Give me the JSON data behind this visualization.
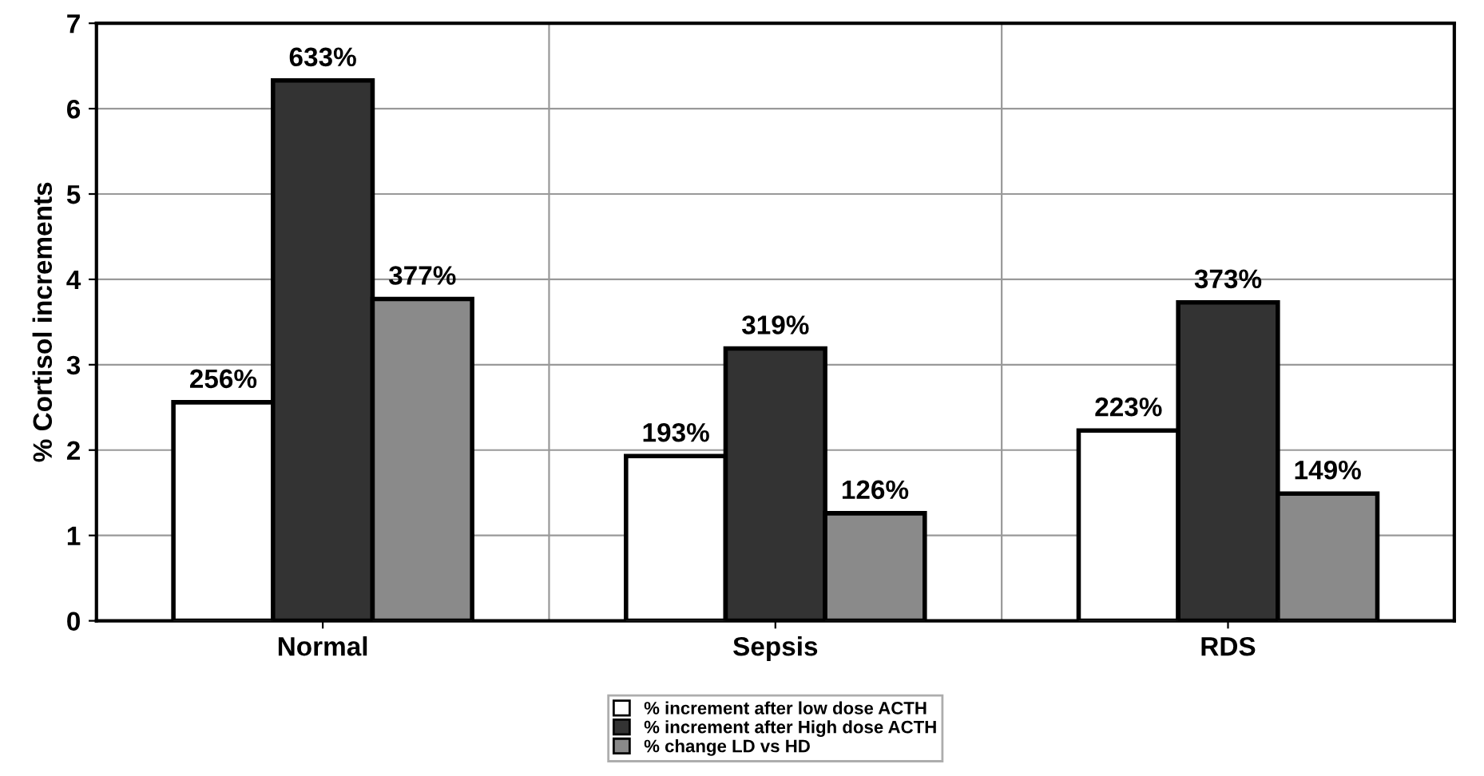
{
  "chart_data": {
    "type": "bar",
    "ylabel": "% Cortisol increments",
    "categories": [
      "Normal",
      "Sepsis",
      "RDS"
    ],
    "series": [
      {
        "name": "% increment after low dose ACTH",
        "color": "#ffffff",
        "values": [
          2.56,
          1.93,
          2.23
        ],
        "value_labels": [
          "256%",
          "193%",
          "223%"
        ]
      },
      {
        "name": "% increment after High dose ACTH",
        "color": "#333333",
        "values": [
          6.33,
          3.19,
          3.73
        ],
        "value_labels": [
          "633%",
          "319%",
          "373%"
        ]
      },
      {
        "name": "% change LD vs HD",
        "color": "#8a8a8a",
        "values": [
          3.77,
          1.26,
          1.49
        ],
        "value_labels": [
          "377%",
          "126%",
          "149%"
        ]
      }
    ],
    "ylim": [
      0,
      7
    ],
    "yticks": [
      0,
      1,
      2,
      3,
      4,
      5,
      6,
      7
    ],
    "grid": true,
    "legend": "bottom"
  }
}
